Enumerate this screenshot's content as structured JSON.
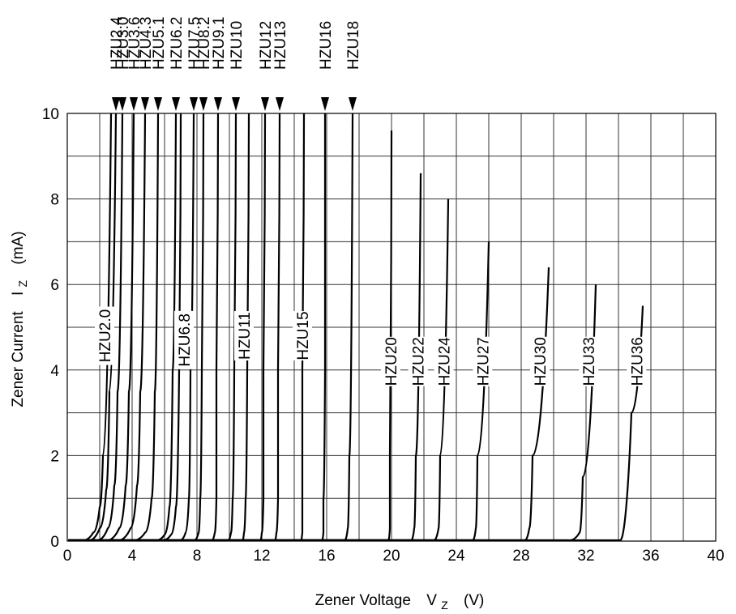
{
  "chart_data": {
    "type": "line",
    "title": "",
    "xlabel": {
      "main": "Zener Voltage",
      "symbol": "V",
      "subscript": "Z",
      "unit": "(V)"
    },
    "ylabel": {
      "main": "Zener Current",
      "symbol": "I",
      "subscript": "Z",
      "unit": "(mA)"
    },
    "xlim": [
      0,
      40
    ],
    "ylim": [
      0,
      10
    ],
    "xticks": [
      0,
      4,
      8,
      12,
      16,
      20,
      24,
      28,
      32,
      36,
      40
    ],
    "yticks": [
      0,
      2,
      4,
      6,
      8,
      10
    ],
    "grid": true,
    "series": [
      {
        "name": "HZU2.0",
        "label_pos": "inline",
        "points": [
          [
            0.9,
            0
          ],
          [
            1.6,
            0.2
          ],
          [
            2.0,
            0.8
          ],
          [
            2.2,
            2.0
          ],
          [
            2.7,
            10
          ]
        ]
      },
      {
        "name": "HZU2.4",
        "label_pos": "top",
        "points": [
          [
            1.3,
            0
          ],
          [
            2.0,
            0.3
          ],
          [
            2.4,
            1.2
          ],
          [
            2.6,
            3.5
          ],
          [
            3.0,
            10
          ]
        ]
      },
      {
        "name": "HZU3.0",
        "label_pos": "top",
        "points": [
          [
            1.8,
            0
          ],
          [
            2.5,
            0.3
          ],
          [
            2.9,
            1.3
          ],
          [
            3.1,
            3.5
          ],
          [
            3.4,
            10
          ]
        ]
      },
      {
        "name": "HZU3.6",
        "label_pos": "top",
        "points": [
          [
            2.4,
            0
          ],
          [
            3.2,
            0.3
          ],
          [
            3.6,
            1.3
          ],
          [
            3.8,
            3.5
          ],
          [
            4.1,
            10
          ]
        ]
      },
      {
        "name": "HZU4.3",
        "label_pos": "top",
        "points": [
          [
            3.1,
            0
          ],
          [
            3.9,
            0.3
          ],
          [
            4.3,
            1.3
          ],
          [
            4.5,
            3.5
          ],
          [
            4.8,
            10
          ]
        ]
      },
      {
        "name": "HZU5.1",
        "label_pos": "top",
        "points": [
          [
            4.0,
            0
          ],
          [
            4.8,
            0.2
          ],
          [
            5.2,
            1.0
          ],
          [
            5.4,
            3.5
          ],
          [
            5.6,
            10
          ]
        ]
      },
      {
        "name": "HZU6.2",
        "label_pos": "top",
        "points": [
          [
            5.4,
            0
          ],
          [
            6.0,
            0.15
          ],
          [
            6.3,
            0.8
          ],
          [
            6.5,
            4.0
          ],
          [
            6.7,
            10
          ]
        ]
      },
      {
        "name": "HZU6.8",
        "label_pos": "inline",
        "points": [
          [
            5.8,
            0
          ],
          [
            6.4,
            0.15
          ],
          [
            6.7,
            0.8
          ],
          [
            6.9,
            4.0
          ],
          [
            7.0,
            10
          ]
        ]
      },
      {
        "name": "HZU7.5",
        "label_pos": "top",
        "points": [
          [
            6.9,
            0
          ],
          [
            7.3,
            0.2
          ],
          [
            7.5,
            1.0
          ],
          [
            7.6,
            4.0
          ],
          [
            7.8,
            10
          ]
        ]
      },
      {
        "name": "HZU8.2",
        "label_pos": "top",
        "points": [
          [
            7.8,
            0
          ],
          [
            8.1,
            0.2
          ],
          [
            8.2,
            1.0
          ],
          [
            8.3,
            4.0
          ],
          [
            8.4,
            10
          ]
        ]
      },
      {
        "name": "HZU9.1",
        "label_pos": "top",
        "points": [
          [
            8.9,
            0
          ],
          [
            9.1,
            0.2
          ],
          [
            9.2,
            1.0
          ],
          [
            9.2,
            4.0
          ],
          [
            9.3,
            10
          ]
        ]
      },
      {
        "name": "HZU10",
        "label_pos": "top",
        "points": [
          [
            9.9,
            0
          ],
          [
            10.1,
            0.2
          ],
          [
            10.2,
            1.0
          ],
          [
            10.3,
            4.0
          ],
          [
            10.4,
            10
          ]
        ]
      },
      {
        "name": "HZU11",
        "label_pos": "inline",
        "points": [
          [
            10.8,
            0
          ],
          [
            10.9,
            0.2
          ],
          [
            11.0,
            1.0
          ],
          [
            11.1,
            4.0
          ],
          [
            11.2,
            10
          ]
        ]
      },
      {
        "name": "HZU12",
        "label_pos": "top",
        "points": [
          [
            11.9,
            0
          ],
          [
            12.0,
            0.2
          ],
          [
            12.1,
            1.0
          ],
          [
            12.1,
            4.0
          ],
          [
            12.2,
            10
          ]
        ]
      },
      {
        "name": "HZU13",
        "label_pos": "top",
        "points": [
          [
            12.8,
            0
          ],
          [
            12.9,
            0.2
          ],
          [
            13.0,
            1.0
          ],
          [
            13.0,
            4.0
          ],
          [
            13.1,
            10
          ]
        ]
      },
      {
        "name": "HZU15",
        "label_pos": "inline",
        "points": [
          [
            14.4,
            0
          ],
          [
            14.5,
            0.2
          ],
          [
            14.5,
            1.0
          ],
          [
            14.5,
            4.0
          ],
          [
            14.6,
            10
          ]
        ]
      },
      {
        "name": "HZU16",
        "label_pos": "top",
        "points": [
          [
            15.7,
            0
          ],
          [
            15.8,
            0.2
          ],
          [
            15.8,
            1.0
          ],
          [
            15.9,
            4.0
          ],
          [
            15.9,
            10
          ]
        ]
      },
      {
        "name": "HZU18",
        "label_pos": "top",
        "points": [
          [
            17.1,
            0
          ],
          [
            17.3,
            0.3
          ],
          [
            17.4,
            2.0
          ],
          [
            17.6,
            10
          ]
        ]
      },
      {
        "name": "HZU20",
        "label_pos": "inline",
        "points": [
          [
            19.8,
            0
          ],
          [
            19.9,
            0.3
          ],
          [
            19.9,
            2.0
          ],
          [
            20.0,
            9.6
          ]
        ]
      },
      {
        "name": "HZU22",
        "label_pos": "inline",
        "points": [
          [
            21.2,
            0
          ],
          [
            21.4,
            0.3
          ],
          [
            21.5,
            2.0
          ],
          [
            21.8,
            8.6
          ]
        ]
      },
      {
        "name": "HZU24",
        "label_pos": "inline",
        "points": [
          [
            22.6,
            0
          ],
          [
            22.9,
            0.3
          ],
          [
            23.0,
            2.0
          ],
          [
            23.5,
            8.0
          ]
        ]
      },
      {
        "name": "HZU27",
        "label_pos": "inline",
        "points": [
          [
            25.0,
            0
          ],
          [
            25.2,
            0.3
          ],
          [
            25.3,
            2.0
          ],
          [
            26.0,
            7.0
          ]
        ]
      },
      {
        "name": "HZU30",
        "label_pos": "inline",
        "points": [
          [
            28.2,
            0
          ],
          [
            28.5,
            0.3
          ],
          [
            28.7,
            2.0
          ],
          [
            29.7,
            6.4
          ]
        ]
      },
      {
        "name": "HZU33",
        "label_pos": "inline",
        "points": [
          [
            30.9,
            0
          ],
          [
            31.6,
            0.2
          ],
          [
            31.8,
            1.5
          ],
          [
            32.6,
            6.0
          ]
        ]
      },
      {
        "name": "HZU36",
        "label_pos": "inline",
        "points": [
          [
            34.1,
            0
          ],
          [
            34.8,
            3.0
          ],
          [
            35.5,
            5.5
          ]
        ]
      }
    ]
  }
}
